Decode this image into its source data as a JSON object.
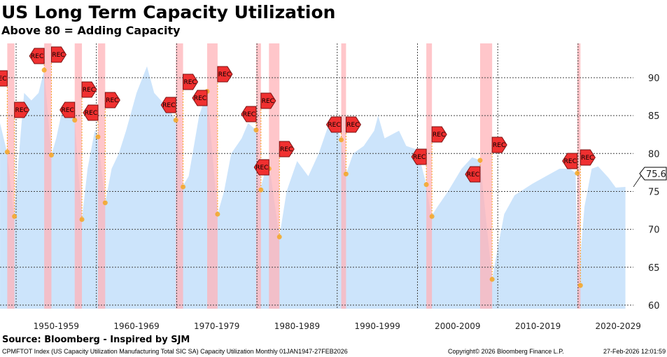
{
  "header": {
    "title": "US Long Term Capacity Utilization",
    "subtitle": "Above 80 = Adding Capacity"
  },
  "footer": {
    "source": "Source: Bloomberg - Inspired by SJM",
    "description": "CPMFTOT Index (US Capacity Utilization Manufacturing Total SIC SA) Capacity Utilization Monthly 01JAN1947-27FEB2026",
    "copyright": "Copyright© 2026 Bloomberg Finance L.P.",
    "timestamp": "27-Feb-2026 12:01:59"
  },
  "colors": {
    "area": "#cce4fb",
    "recession": "#ffb3b8",
    "flag": "#f03030",
    "dot": "#f5a623",
    "grid": "#444444"
  },
  "chart_data": {
    "type": "area",
    "title": "US Long Term Capacity Utilization",
    "ylim": [
      59.5,
      93
    ],
    "xlim": [
      1948,
      2026.8
    ],
    "yticks": [
      60,
      65,
      70,
      75,
      80,
      85,
      90
    ],
    "xtick_labels": [
      {
        "year": 1950,
        "label": "1950-1959"
      },
      {
        "year": 1960,
        "label": "1960-1969"
      },
      {
        "year": 1970,
        "label": "1970-1979"
      },
      {
        "year": 1980,
        "label": "1980-1989"
      },
      {
        "year": 1990,
        "label": "1990-1999"
      },
      {
        "year": 2000,
        "label": "2000-2009"
      },
      {
        "year": 2010,
        "label": "2010-2019"
      },
      {
        "year": 2020,
        "label": "2020-2029"
      }
    ],
    "last_value": "75.6",
    "series": [
      {
        "name": "Capacity Utilization",
        "x": [
          1948.0,
          1948.87,
          1949.74,
          1950.6,
          1951.0,
          1951.9,
          1952.8,
          1953.5,
          1954.4,
          1955.0,
          1955.8,
          1956.7,
          1957.3,
          1958.2,
          1958.9,
          1959.8,
          1960.2,
          1961.1,
          1961.9,
          1962.8,
          1963.7,
          1965.0,
          1966.3,
          1967.2,
          1968.9,
          1969.9,
          1970.7,
          1971.5,
          1972.8,
          1973.8,
          1975.1,
          1975.9,
          1976.8,
          1978.1,
          1978.9,
          1979.9,
          1980.4,
          1981.1,
          1981.6,
          1982.8,
          1983.7,
          1985.0,
          1986.4,
          1987.7,
          1989.0,
          1989.7,
          1990.5,
          1991.1,
          1992.0,
          1993.3,
          1994.6,
          1995.1,
          1995.9,
          1997.7,
          1998.6,
          2000.0,
          2001.1,
          2001.7,
          2002.5,
          2003.8,
          2005.5,
          2006.8,
          2007.8,
          2009.3,
          2009.9,
          2010.8,
          2012.1,
          2014.3,
          2016.0,
          2017.7,
          2019.0,
          2019.7,
          2020.0,
          2020.8,
          2021.7,
          2022.5,
          2023.8,
          2024.7,
          2025.9
        ],
        "y": [
          84.0,
          80.2,
          71.7,
          83.0,
          88.0,
          87.0,
          88.0,
          91.0,
          79.8,
          82.0,
          86.0,
          85.0,
          84.4,
          71.3,
          78.0,
          83.0,
          82.2,
          73.5,
          78.0,
          80.0,
          83.0,
          88.0,
          91.5,
          88.0,
          86.0,
          84.4,
          75.6,
          77.0,
          85.0,
          88.2,
          72.0,
          75.0,
          80.0,
          82.0,
          84.0,
          83.1,
          75.2,
          78.0,
          78.0,
          69.0,
          75.0,
          79.0,
          77.0,
          80.0,
          84.0,
          84.5,
          81.8,
          77.3,
          80.0,
          81.0,
          83.0,
          85.0,
          82.0,
          83.0,
          81.0,
          80.5,
          75.9,
          71.7,
          73.0,
          75.0,
          78.0,
          79.5,
          79.1,
          63.4,
          67.0,
          72.0,
          74.5,
          76.0,
          77.0,
          78.0,
          78.0,
          77.4,
          62.6,
          73.0,
          78.0,
          78.3,
          76.8,
          75.5,
          75.6
        ]
      }
    ],
    "recessions": [
      {
        "start": 1948.9,
        "end": 1949.8,
        "peak": 80.2,
        "trough": 71.7,
        "label": "REC"
      },
      {
        "start": 1953.5,
        "end": 1954.4,
        "peak": 91.0,
        "trough": 79.8,
        "label": "REC"
      },
      {
        "start": 1957.3,
        "end": 1958.2,
        "peak": 84.4,
        "trough": 71.3,
        "label": "REC"
      },
      {
        "start": 1960.2,
        "end": 1961.1,
        "peak": 82.2,
        "trough": 73.5,
        "label": "REC"
      },
      {
        "start": 1969.9,
        "end": 1970.8,
        "peak": 84.4,
        "trough": 75.6,
        "label": "REC"
      },
      {
        "start": 1973.8,
        "end": 1975.1,
        "peak": 88.2,
        "trough": 72.0,
        "label": "REC"
      },
      {
        "start": 1979.9,
        "end": 1980.5,
        "peak": 83.1,
        "trough": 75.2,
        "label": "REC"
      },
      {
        "start": 1981.5,
        "end": 1982.8,
        "peak": 78.0,
        "trough": 69.0,
        "label": "REC"
      },
      {
        "start": 1990.5,
        "end": 1991.1,
        "peak": 81.8,
        "trough": 77.3,
        "label": "REC"
      },
      {
        "start": 2001.1,
        "end": 2001.8,
        "peak": 75.9,
        "trough": 71.7,
        "label": "REC"
      },
      {
        "start": 2007.8,
        "end": 2009.3,
        "peak": 79.1,
        "trough": 63.4,
        "label": "REC"
      },
      {
        "start": 2019.9,
        "end": 2020.3,
        "peak": 77.4,
        "trough": 62.6,
        "label": "REC"
      }
    ]
  }
}
